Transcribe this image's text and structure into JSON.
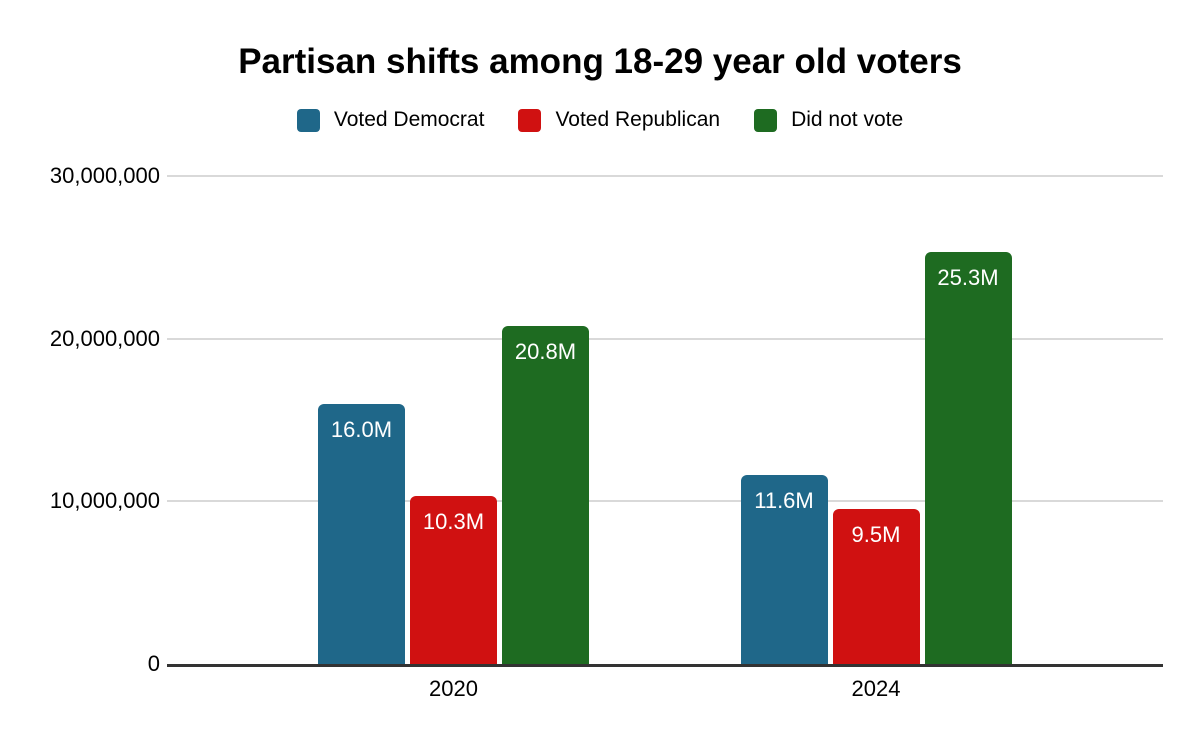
{
  "chart_data": {
    "type": "bar",
    "title": "Partisan shifts among 18-29 year old voters",
    "categories": [
      "2020",
      "2024"
    ],
    "series": [
      {
        "name": "Voted Democrat",
        "color": "#1F6789",
        "values": [
          16000000,
          11600000
        ],
        "value_labels": [
          "16.0M",
          "11.6M"
        ]
      },
      {
        "name": "Voted Republican",
        "color": "#D01111",
        "values": [
          10300000,
          9500000
        ],
        "value_labels": [
          "10.3M",
          "9.5M"
        ]
      },
      {
        "name": "Did not vote",
        "color": "#1E6B21",
        "values": [
          20800000,
          25300000
        ],
        "value_labels": [
          "20.8M",
          "25.3M"
        ]
      }
    ],
    "yticks": [
      {
        "value": 0,
        "label": "0"
      },
      {
        "value": 10000000,
        "label": "10,000,000"
      },
      {
        "value": 20000000,
        "label": "20,000,000"
      },
      {
        "value": 30000000,
        "label": "30,000,000"
      }
    ],
    "ylim": [
      0,
      30000000
    ],
    "xlabel": "",
    "ylabel": "",
    "grid": true,
    "legend_position": "top",
    "colors": {
      "value_label": "#FFFFFF",
      "axis_line": "#333333",
      "gridline": "#D9D9D9",
      "text": "#000000"
    }
  }
}
